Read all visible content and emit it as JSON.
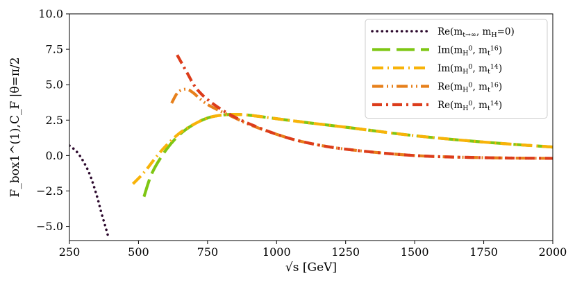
{
  "chart_data": {
    "type": "line",
    "title": "",
    "xlabel": "√s [GeV]",
    "ylabel": "F_box1^(1),C_F |θ=π/2",
    "xlim": [
      250,
      2000
    ],
    "ylim": [
      -6,
      10
    ],
    "xticks": [
      250,
      500,
      750,
      1000,
      1250,
      1500,
      1750,
      2000
    ],
    "xtick_labels": [
      "250",
      "500",
      "750",
      "1000",
      "1250",
      "1500",
      "1750",
      "2000"
    ],
    "yticks": [
      -5,
      -2.5,
      0,
      2.5,
      5,
      7.5,
      10
    ],
    "ytick_labels": [
      "−5.0",
      "−2.5",
      "0.0",
      "2.5",
      "5.0",
      "7.5",
      "10.0"
    ],
    "grid": false,
    "legend_position": "top-right",
    "series": [
      {
        "name": "Re(m_t→∞, m_H=0)",
        "label_main": "Re(m",
        "label_parts": [
          [
            "t→∞",
            "sub"
          ],
          [
            ", m",
            "normal"
          ],
          [
            "H",
            "sub"
          ],
          [
            "=0)",
            "normal"
          ]
        ],
        "color": "#2d0a2e",
        "style": "dotted",
        "x": [
          250,
          275,
          300,
          325,
          350,
          365,
          380,
          393
        ],
        "y": [
          0.7,
          0.3,
          -0.4,
          -1.4,
          -2.9,
          -4.0,
          -5.0,
          -5.9
        ]
      },
      {
        "name": "Im(m_H^0, m_t^16)",
        "label_main": "Im(m",
        "label_parts": [
          [
            "H",
            "sub"
          ],
          [
            "0",
            "sup"
          ],
          [
            ", m",
            "normal"
          ],
          [
            "t",
            "sub"
          ],
          [
            "16",
            "sup"
          ],
          [
            ")",
            "normal"
          ]
        ],
        "color": "#7ec614",
        "style": "long-dash",
        "x": [
          520,
          550,
          600,
          650,
          700,
          750,
          800,
          850,
          900,
          1000,
          1100,
          1250,
          1500,
          1750,
          2000
        ],
        "y": [
          -2.9,
          -1.2,
          0.4,
          1.5,
          2.2,
          2.65,
          2.85,
          2.9,
          2.85,
          2.6,
          2.35,
          2.0,
          1.4,
          0.95,
          0.6
        ]
      },
      {
        "name": "Im(m_H^0, m_t^14)",
        "label_main": "Im(m",
        "label_parts": [
          [
            "H",
            "sub"
          ],
          [
            "0",
            "sup"
          ],
          [
            ", m",
            "normal"
          ],
          [
            "t",
            "sub"
          ],
          [
            "14",
            "sup"
          ],
          [
            ")",
            "normal"
          ]
        ],
        "color": "#f8b309",
        "style": "dash-dot-long",
        "x": [
          480,
          520,
          560,
          600,
          650,
          700,
          750,
          800,
          850,
          900,
          1000,
          1100,
          1250,
          1500,
          1750,
          2000
        ],
        "y": [
          -2.0,
          -1.2,
          -0.2,
          0.7,
          1.6,
          2.2,
          2.65,
          2.85,
          2.9,
          2.85,
          2.6,
          2.35,
          2.0,
          1.4,
          0.95,
          0.6
        ]
      },
      {
        "name": "Re(m_H^0, m_t^16)",
        "label_main": "Re(m",
        "label_parts": [
          [
            "H",
            "sub"
          ],
          [
            "0",
            "sup"
          ],
          [
            ", m",
            "normal"
          ],
          [
            "t",
            "sub"
          ],
          [
            "16",
            "sup"
          ],
          [
            ")",
            "normal"
          ]
        ],
        "color": "#e7801c",
        "style": "dash-dot-dot",
        "x": [
          620,
          640,
          660,
          680,
          700,
          720,
          750,
          800,
          850,
          900,
          1000,
          1100,
          1250,
          1500,
          1750,
          2000
        ],
        "y": [
          3.7,
          4.4,
          4.65,
          4.65,
          4.4,
          4.05,
          3.6,
          3.1,
          2.65,
          2.2,
          1.5,
          0.95,
          0.45,
          0.0,
          -0.15,
          -0.2
        ]
      },
      {
        "name": "Re(m_H^0, m_t^14)",
        "label_main": "Re(m",
        "label_parts": [
          [
            "H",
            "sub"
          ],
          [
            "0",
            "sup"
          ],
          [
            ", m",
            "normal"
          ],
          [
            "t",
            "sub"
          ],
          [
            "14",
            "sup"
          ],
          [
            ")",
            "normal"
          ]
        ],
        "color": "#dc3c1b",
        "style": "dash-dot",
        "x": [
          640,
          660,
          680,
          700,
          720,
          750,
          800,
          850,
          900,
          1000,
          1100,
          1250,
          1500,
          1750,
          2000
        ],
        "y": [
          7.1,
          6.4,
          5.7,
          5.0,
          4.5,
          3.95,
          3.25,
          2.7,
          2.25,
          1.5,
          0.95,
          0.45,
          0.0,
          -0.15,
          -0.2
        ]
      }
    ]
  }
}
